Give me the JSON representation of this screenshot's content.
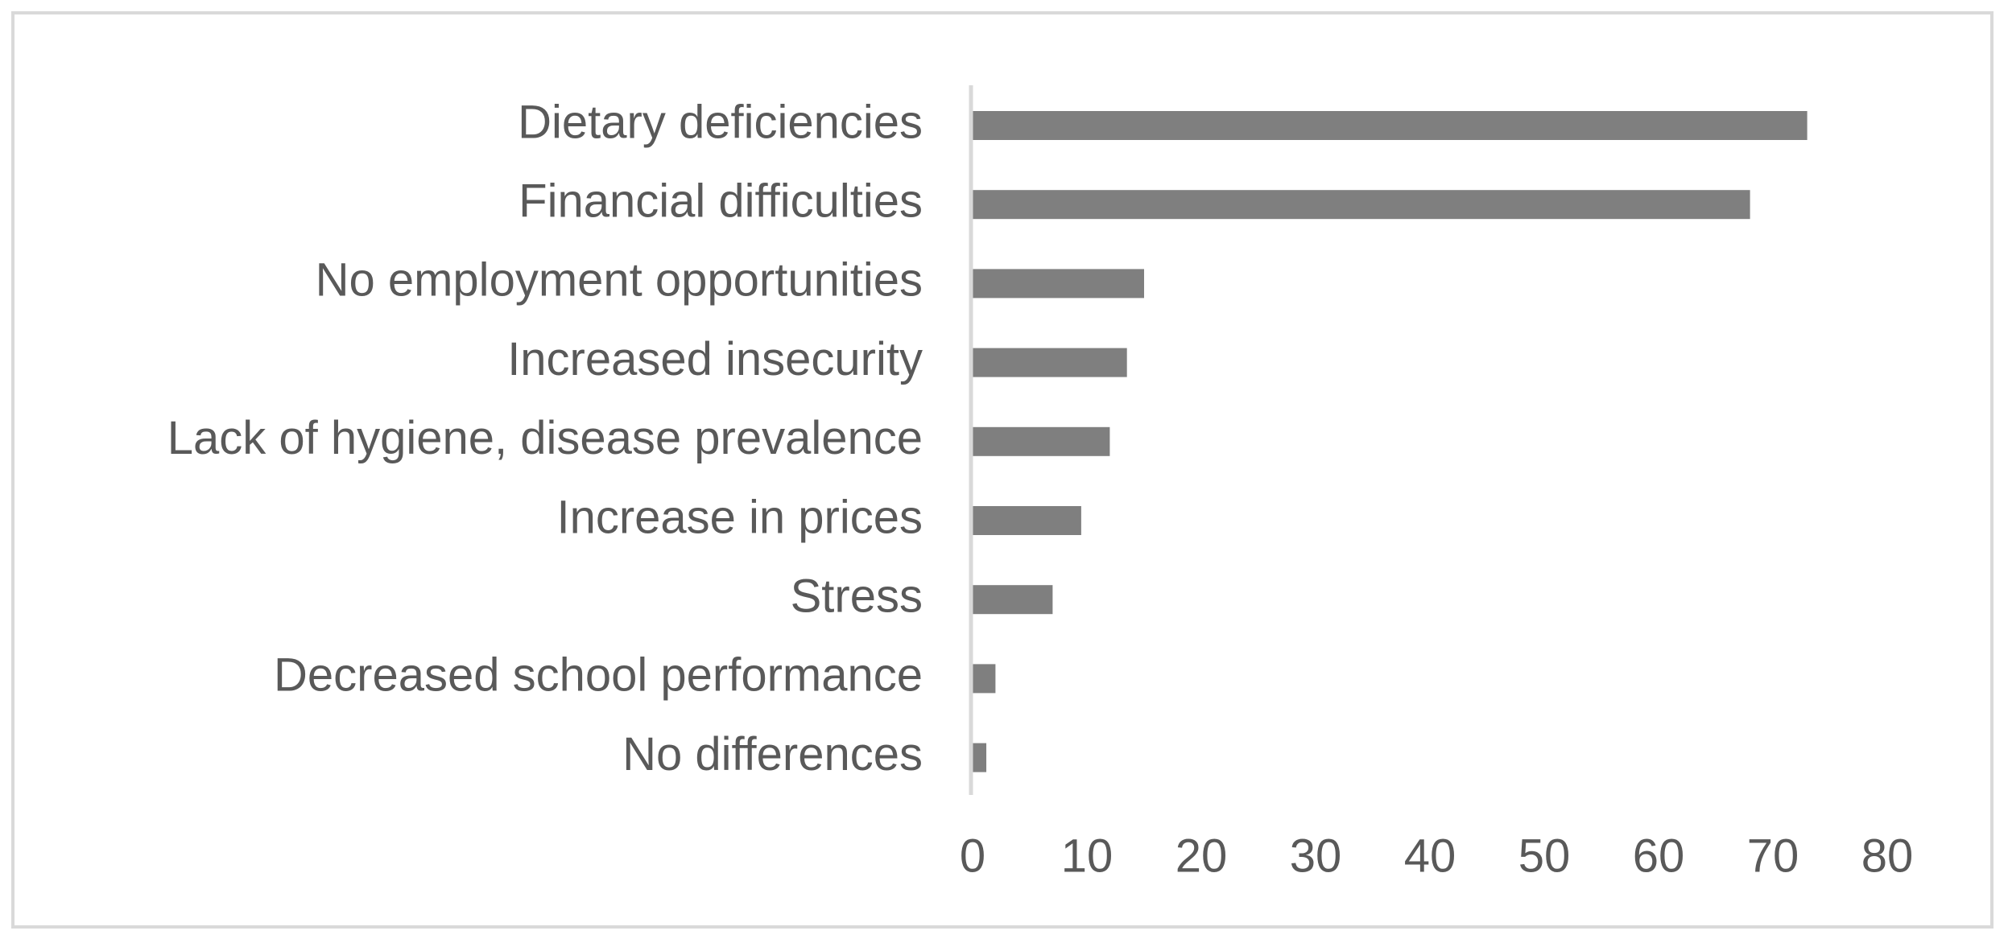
{
  "chart_data": {
    "type": "bar",
    "orientation": "horizontal",
    "title": "",
    "xlabel": "",
    "ylabel": "",
    "categories": [
      "Dietary deficiencies",
      "Financial difficulties",
      "No employment opportunities",
      "Increased insecurity",
      "Lack of hygiene, disease prevalence",
      "Increase in prices",
      "Stress",
      "Decreased school performance",
      "No differences"
    ],
    "values": [
      73,
      68,
      15,
      13.5,
      12,
      9.5,
      7,
      2,
      1.2
    ],
    "xlim": [
      0,
      80
    ],
    "xticks": [
      0,
      10,
      20,
      30,
      40,
      50,
      60,
      70,
      80
    ],
    "xtick_labels": [
      "0",
      "10",
      "20",
      "30",
      "40",
      "50",
      "60",
      "70",
      "80"
    ],
    "grid": false,
    "legend": "none",
    "colors": {
      "bar": "#7f7f7f",
      "axis": "#d9d9d9",
      "text": "#595959",
      "frame": "#d9d9d9"
    }
  }
}
